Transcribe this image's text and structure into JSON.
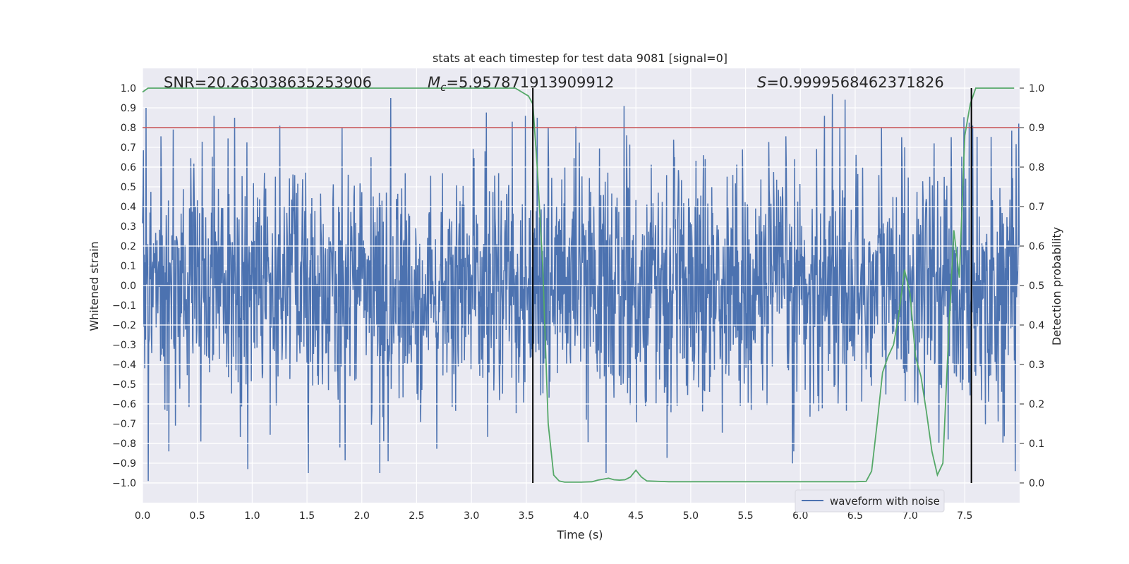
{
  "chart_data": {
    "type": "line",
    "title": "stats at each timestep for test data 9081 [signal=0]",
    "xlabel": "Time (s)",
    "ylabel": "Whitened strain",
    "ylabel_right": "Detection probability",
    "xlim": [
      0.0,
      8.0
    ],
    "ylim": [
      -1.1,
      1.1
    ],
    "ylim_right": [
      -0.05,
      1.05
    ],
    "xticks": [
      "0.0",
      "0.5",
      "1.0",
      "1.5",
      "2.0",
      "2.5",
      "3.0",
      "3.5",
      "4.0",
      "4.5",
      "5.0",
      "5.5",
      "6.0",
      "6.5",
      "7.0",
      "7.5"
    ],
    "yticks": [
      "1.0",
      "0.9",
      "0.8",
      "0.7",
      "0.6",
      "0.5",
      "0.4",
      "0.3",
      "0.2",
      "0.1",
      "0.0",
      "−0.1",
      "−0.2",
      "−0.3",
      "−0.4",
      "−0.5",
      "−0.6",
      "−0.7",
      "−0.8",
      "−0.9",
      "−1.0"
    ],
    "yticks_right": [
      "1.0",
      "0.9",
      "0.8",
      "0.7",
      "0.6",
      "0.5",
      "0.4",
      "0.3",
      "0.2",
      "0.1",
      "0.0"
    ],
    "grid": true,
    "legend": {
      "location": "lower-right",
      "entries": [
        "waveform with noise"
      ]
    },
    "annotations": {
      "snr": "SNR=20.263038635253906",
      "mc_symbol": "M",
      "mc_sub": "c",
      "mc_value": "=5.957871913909912",
      "s_symbol": "S",
      "s_value": "=0.9999568462371826"
    },
    "threshold_level": 0.9,
    "event_lines_x": [
      3.56,
      7.56
    ],
    "colors": {
      "waveform": "#4c72b0",
      "probability": "#55a868",
      "threshold": "#c44e52",
      "event": "#000000",
      "plot_bg": "#eaeaf2",
      "grid": "#ffffff"
    },
    "waveform": {
      "name": "waveform with noise",
      "dt": 0.004,
      "duration": 8.0,
      "noise_std": 0.3,
      "peaks": [
        [
          0.03,
          0.9
        ],
        [
          0.05,
          -0.99
        ],
        [
          0.28,
          0.79
        ],
        [
          0.24,
          -0.84
        ],
        [
          0.65,
          0.86
        ],
        [
          0.53,
          -0.79
        ],
        [
          0.84,
          0.85
        ],
        [
          0.96,
          -0.93
        ],
        [
          1.25,
          0.81
        ],
        [
          1.82,
          0.8
        ],
        [
          1.8,
          -0.82
        ],
        [
          2.24,
          -0.89
        ],
        [
          3.37,
          0.83
        ],
        [
          3.49,
          0.86
        ],
        [
          3.6,
          0.85
        ],
        [
          3.7,
          0.8
        ],
        [
          4.39,
          0.91
        ],
        [
          4.05,
          -0.68
        ],
        [
          5.13,
          0.64
        ],
        [
          5.94,
          -0.84
        ],
        [
          6.29,
          0.97
        ],
        [
          6.22,
          0.86
        ],
        [
          6.36,
          0.8
        ],
        [
          6.74,
          0.8
        ],
        [
          6.95,
          0.7
        ],
        [
          7.35,
          -0.78
        ],
        [
          7.57,
          0.81
        ],
        [
          7.99,
          0.82
        ],
        [
          7.96,
          -0.94
        ],
        [
          5.55,
          -0.63
        ]
      ]
    },
    "probability": {
      "name": "detection probability",
      "x": [
        0.0,
        0.05,
        0.2,
        0.5,
        1.0,
        1.5,
        2.0,
        2.5,
        3.0,
        3.3,
        3.4,
        3.46,
        3.52,
        3.56,
        3.6,
        3.65,
        3.7,
        3.75,
        3.8,
        3.85,
        3.9,
        4.0,
        4.1,
        4.15,
        4.25,
        4.3,
        4.35,
        4.4,
        4.45,
        4.5,
        4.55,
        4.6,
        4.7,
        4.8,
        5.0,
        5.5,
        6.0,
        6.3,
        6.5,
        6.6,
        6.65,
        6.7,
        6.75,
        6.8,
        6.85,
        6.9,
        6.95,
        7.0,
        7.05,
        7.1,
        7.15,
        7.2,
        7.25,
        7.3,
        7.35,
        7.4,
        7.45,
        7.5,
        7.55,
        7.6,
        7.65,
        7.7,
        7.8,
        7.95
      ],
      "values": [
        0.99,
        1.0,
        1.0,
        1.0,
        1.0,
        1.0,
        1.0,
        1.0,
        1.0,
        1.0,
        1.0,
        0.99,
        0.98,
        0.96,
        0.8,
        0.55,
        0.15,
        0.02,
        0.005,
        0.002,
        0.002,
        0.002,
        0.003,
        0.007,
        0.012,
        0.008,
        0.007,
        0.008,
        0.015,
        0.032,
        0.015,
        0.005,
        0.004,
        0.003,
        0.003,
        0.003,
        0.003,
        0.003,
        0.003,
        0.004,
        0.03,
        0.15,
        0.28,
        0.32,
        0.35,
        0.43,
        0.54,
        0.48,
        0.32,
        0.27,
        0.18,
        0.08,
        0.02,
        0.05,
        0.36,
        0.64,
        0.52,
        0.88,
        0.96,
        1.0,
        1.0,
        1.0,
        1.0,
        1.0
      ]
    }
  }
}
